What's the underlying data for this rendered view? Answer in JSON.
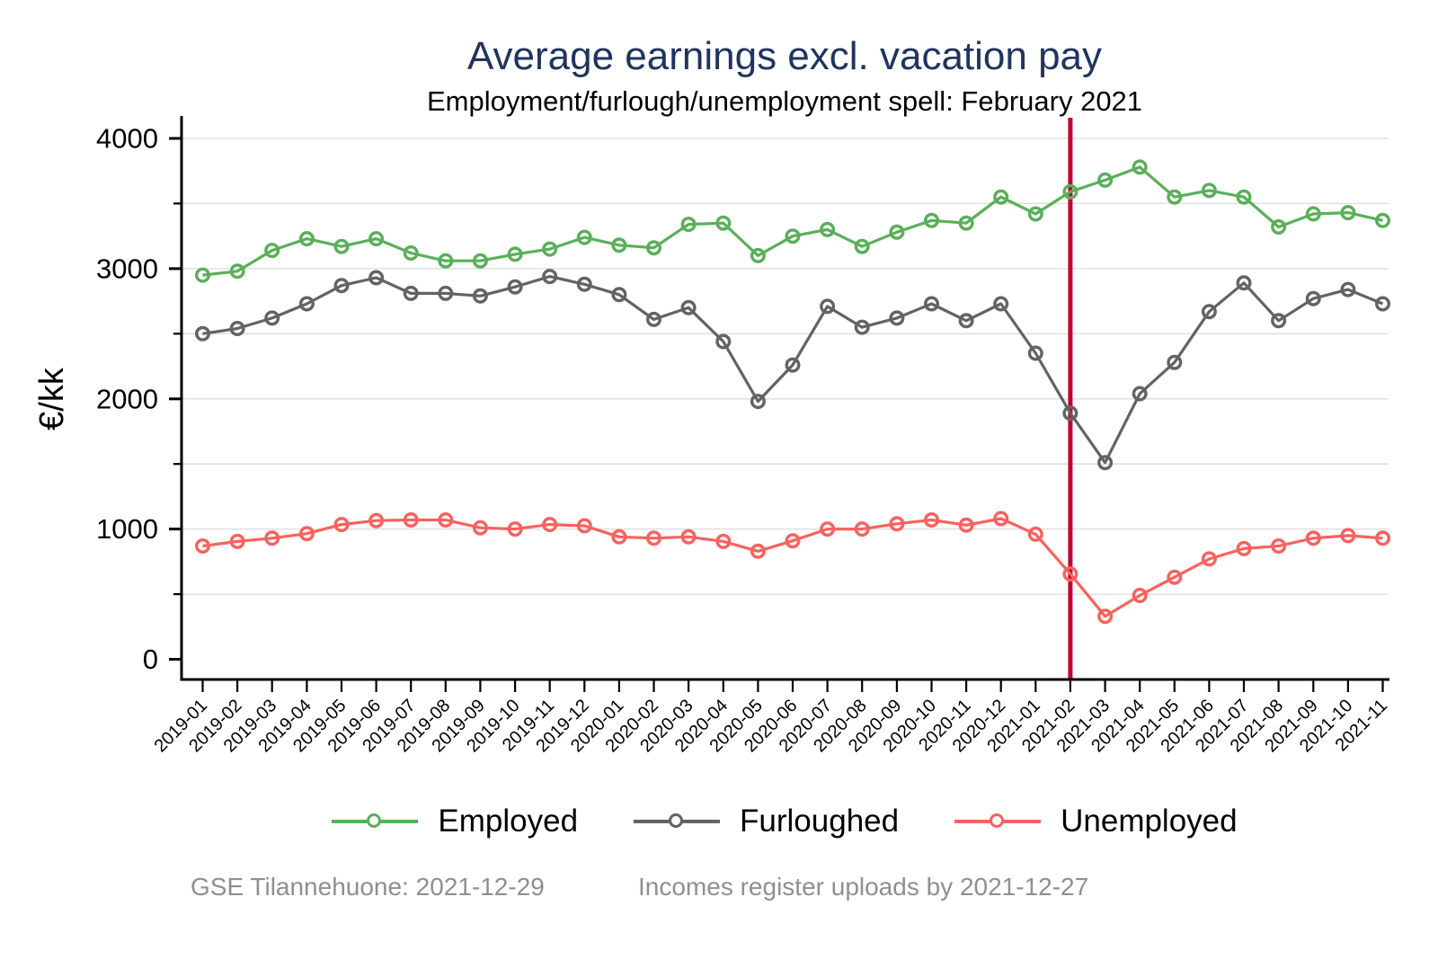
{
  "chart": {
    "title": "Average earnings excl. vacation pay",
    "subtitle": "Employment/furlough/unemployment spell: February 2021",
    "ylabel": "€/kk",
    "footer_left": "GSE Tilannehuone: 2021-12-29",
    "footer_right": "Incomes register uploads by 2021-12-27"
  },
  "chart_data": {
    "type": "line",
    "title": "Average earnings excl. vacation pay",
    "subtitle": "Employment/furlough/unemployment spell: February 2021",
    "xlabel": "",
    "ylabel": "€/kk",
    "ylim": [
      0,
      4000
    ],
    "ytick_major_step": 1000,
    "ytick_minor_step": 500,
    "grid": "horizontal",
    "gridline_color": "#dcdcdc",
    "legend_position": "bottom",
    "marker": "hollow-circle",
    "categories": [
      "2019-01",
      "2019-02",
      "2019-03",
      "2019-04",
      "2019-05",
      "2019-06",
      "2019-07",
      "2019-08",
      "2019-09",
      "2019-10",
      "2019-11",
      "2019-12",
      "2020-01",
      "2020-02",
      "2020-03",
      "2020-04",
      "2020-05",
      "2020-06",
      "2020-07",
      "2020-08",
      "2020-09",
      "2020-10",
      "2020-11",
      "2020-12",
      "2021-01",
      "2021-02",
      "2021-03",
      "2021-04",
      "2021-05",
      "2021-06",
      "2021-07",
      "2021-08",
      "2021-09",
      "2021-10",
      "2021-11"
    ],
    "series": [
      {
        "name": "Employed",
        "color": "#5aaf5a",
        "values": [
          2950,
          2980,
          3140,
          3230,
          3170,
          3230,
          3120,
          3060,
          3060,
          3110,
          3150,
          3240,
          3180,
          3160,
          3340,
          3350,
          3100,
          3250,
          3300,
          3170,
          3280,
          3370,
          3350,
          3550,
          3420,
          3590,
          3680,
          3780,
          3550,
          3600,
          3550,
          3320,
          3420,
          3430,
          3370
        ]
      },
      {
        "name": "Furloughed",
        "color": "#636363",
        "values": [
          2500,
          2540,
          2620,
          2730,
          2870,
          2930,
          2810,
          2810,
          2790,
          2860,
          2940,
          2880,
          2800,
          2610,
          2700,
          2440,
          1980,
          2260,
          2710,
          2550,
          2620,
          2730,
          2600,
          2730,
          2350,
          1890,
          1510,
          2040,
          2280,
          2670,
          2890,
          2600,
          2770,
          2840,
          2730
        ]
      },
      {
        "name": "Unemployed",
        "color": "#f8625f",
        "values": [
          870,
          905,
          930,
          965,
          1035,
          1065,
          1070,
          1070,
          1010,
          1000,
          1035,
          1025,
          940,
          930,
          940,
          905,
          830,
          910,
          1000,
          1000,
          1040,
          1070,
          1030,
          1080,
          960,
          655,
          330,
          490,
          630,
          770,
          850,
          870,
          930,
          950,
          930
        ]
      }
    ],
    "vline": {
      "category": "2021-02",
      "color": "#c10534"
    }
  }
}
